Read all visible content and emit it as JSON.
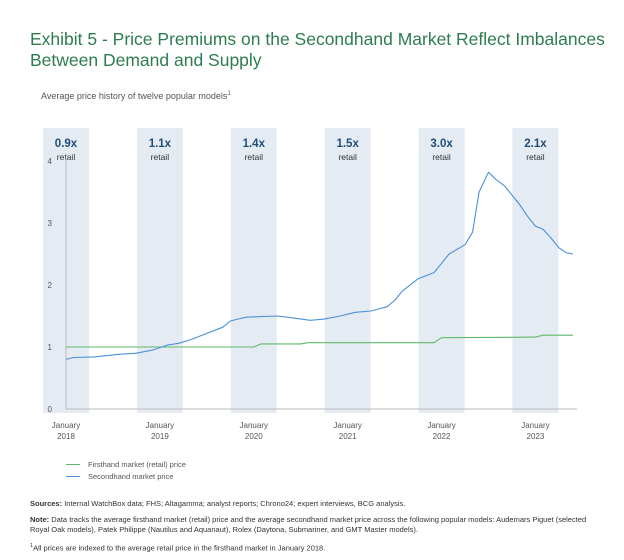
{
  "header": {
    "title": "Exhibit 5 - Price Premiums on the Secondhand Market Reflect Imbalances Between Demand and Supply",
    "subtitle": "Average price history of twelve popular models",
    "subtitle_mark": "1"
  },
  "colors": {
    "title": "#2d7d4f",
    "band": "#e5ebf3",
    "firsthand": "#5fb96a",
    "secondhand": "#4a90d9",
    "premium_text": "#1f4e79"
  },
  "chart_data": {
    "type": "line",
    "title": "Average price history of twelve popular models",
    "xlabel": "",
    "ylabel": "",
    "ylim": [
      0,
      4
    ],
    "yticks": [
      "0",
      "1",
      "2",
      "3",
      "4"
    ],
    "xrange": [
      2018.0,
      2023.4
    ],
    "xticks": [
      {
        "x": 2018,
        "label": [
          "January",
          "2018"
        ]
      },
      {
        "x": 2019,
        "label": [
          "January",
          "2019"
        ]
      },
      {
        "x": 2020,
        "label": [
          "January",
          "2020"
        ]
      },
      {
        "x": 2021,
        "label": [
          "January",
          "2021"
        ]
      },
      {
        "x": 2022,
        "label": [
          "January",
          "2022"
        ]
      },
      {
        "x": 2023,
        "label": [
          "January",
          "2023"
        ]
      }
    ],
    "premiums": [
      {
        "year": 2018,
        "value": "0.9x",
        "unit": "retail"
      },
      {
        "year": 2019,
        "value": "1.1x",
        "unit": "retail"
      },
      {
        "year": 2020,
        "value": "1.4x",
        "unit": "retail"
      },
      {
        "year": 2021,
        "value": "1.5x",
        "unit": "retail"
      },
      {
        "year": 2022,
        "value": "3.0x",
        "unit": "retail"
      },
      {
        "year": 2023,
        "value": "2.1x",
        "unit": "retail"
      }
    ],
    "series": [
      {
        "name": "Firsthand market (retail) price",
        "points": [
          [
            2018.0,
            1.0
          ],
          [
            2019.0,
            1.0
          ],
          [
            2020.0,
            1.0
          ],
          [
            2020.08,
            1.05
          ],
          [
            2020.5,
            1.05
          ],
          [
            2020.58,
            1.07
          ],
          [
            2021.0,
            1.07
          ],
          [
            2021.92,
            1.07
          ],
          [
            2022.0,
            1.15
          ],
          [
            2023.0,
            1.16
          ],
          [
            2023.08,
            1.19
          ],
          [
            2023.4,
            1.19
          ]
        ]
      },
      {
        "name": "Secondhand market price",
        "points": [
          [
            2018.0,
            0.8
          ],
          [
            2018.08,
            0.83
          ],
          [
            2018.3,
            0.84
          ],
          [
            2018.55,
            0.88
          ],
          [
            2018.75,
            0.9
          ],
          [
            2018.92,
            0.95
          ],
          [
            2019.0,
            0.99
          ],
          [
            2019.08,
            1.03
          ],
          [
            2019.2,
            1.06
          ],
          [
            2019.33,
            1.12
          ],
          [
            2019.5,
            1.22
          ],
          [
            2019.67,
            1.32
          ],
          [
            2019.75,
            1.42
          ],
          [
            2019.83,
            1.45
          ],
          [
            2019.92,
            1.48
          ],
          [
            2020.08,
            1.49
          ],
          [
            2020.25,
            1.5
          ],
          [
            2020.42,
            1.47
          ],
          [
            2020.6,
            1.43
          ],
          [
            2020.75,
            1.45
          ],
          [
            2020.92,
            1.5
          ],
          [
            2021.08,
            1.56
          ],
          [
            2021.25,
            1.58
          ],
          [
            2021.42,
            1.65
          ],
          [
            2021.5,
            1.75
          ],
          [
            2021.58,
            1.9
          ],
          [
            2021.75,
            2.1
          ],
          [
            2021.92,
            2.2
          ],
          [
            2022.0,
            2.35
          ],
          [
            2022.08,
            2.5
          ],
          [
            2022.25,
            2.65
          ],
          [
            2022.33,
            2.85
          ],
          [
            2022.4,
            3.5
          ],
          [
            2022.5,
            3.82
          ],
          [
            2022.58,
            3.7
          ],
          [
            2022.67,
            3.6
          ],
          [
            2022.75,
            3.45
          ],
          [
            2022.83,
            3.3
          ],
          [
            2022.92,
            3.1
          ],
          [
            2023.0,
            2.95
          ],
          [
            2023.08,
            2.9
          ],
          [
            2023.17,
            2.75
          ],
          [
            2023.25,
            2.6
          ],
          [
            2023.33,
            2.52
          ],
          [
            2023.4,
            2.5
          ]
        ]
      }
    ],
    "legend": "bottom-left"
  },
  "legend": {
    "firsthand": "Firsthand market (retail) price",
    "secondhand": "Secondhand market price"
  },
  "notes": {
    "sources_label": "Sources:",
    "sources_text": "Internal WatchBox data; FHS; Altagamma; analyst reports; Chrono24; expert interviews, BCG analysis.",
    "note_label": "Note:",
    "note_text": "Data tracks the average firsthand market (retail) price and the average secondhand market price across the following popular models: Audemars Piguet (selected Royal Oak models), Patek Philippe (Nautilus and Aquanaut), Rolex (Daytona, Submariner, and GMT Master models).",
    "footnote_mark": "1",
    "footnote_text": "All prices are indexed to the average retail price in the firsthand market in January 2018."
  }
}
